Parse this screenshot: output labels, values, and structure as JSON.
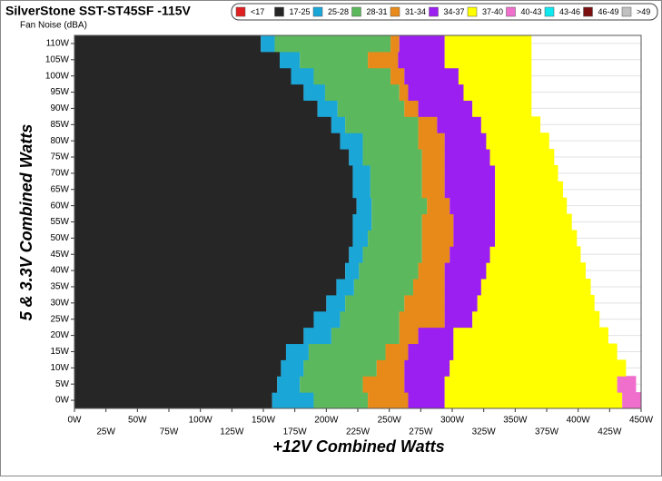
{
  "chart_data": {
    "type": "heatmap",
    "title": "SilverStone SST-ST45SF -115V",
    "subtitle": "Fan Noise (dBA)",
    "x_label": "+12V Combined Watts",
    "y_label": "5 & 3.3V Combined Watts",
    "xlim": [
      0,
      450
    ],
    "ylim": [
      -2.5,
      112.5
    ],
    "xticks": [
      {
        "value": 0,
        "label": "0W"
      },
      {
        "value": 25,
        "label": "25W"
      },
      {
        "value": 50,
        "label": "50W"
      },
      {
        "value": 75,
        "label": "75W"
      },
      {
        "value": 100,
        "label": "100W"
      },
      {
        "value": 125,
        "label": "125W"
      },
      {
        "value": 150,
        "label": "150W"
      },
      {
        "value": 175,
        "label": "175W"
      },
      {
        "value": 200,
        "label": "200W"
      },
      {
        "value": 225,
        "label": "225W"
      },
      {
        "value": 250,
        "label": "250W"
      },
      {
        "value": 275,
        "label": "275W"
      },
      {
        "value": 300,
        "label": "300W"
      },
      {
        "value": 325,
        "label": "325W"
      },
      {
        "value": 350,
        "label": "350W"
      },
      {
        "value": 375,
        "label": "375W"
      },
      {
        "value": 400,
        "label": "400W"
      },
      {
        "value": 425,
        "label": "425W"
      },
      {
        "value": 450,
        "label": "450W"
      }
    ],
    "yticks": [
      {
        "value": 0,
        "label": "0W"
      },
      {
        "value": 5,
        "label": "5W"
      },
      {
        "value": 10,
        "label": "10W"
      },
      {
        "value": 15,
        "label": "15W"
      },
      {
        "value": 20,
        "label": "20W"
      },
      {
        "value": 25,
        "label": "25W"
      },
      {
        "value": 30,
        "label": "30W"
      },
      {
        "value": 35,
        "label": "35W"
      },
      {
        "value": 40,
        "label": "40W"
      },
      {
        "value": 45,
        "label": "45W"
      },
      {
        "value": 50,
        "label": "50W"
      },
      {
        "value": 55,
        "label": "55W"
      },
      {
        "value": 60,
        "label": "60W"
      },
      {
        "value": 65,
        "label": "65W"
      },
      {
        "value": 70,
        "label": "70W"
      },
      {
        "value": 75,
        "label": "75W"
      },
      {
        "value": 80,
        "label": "80W"
      },
      {
        "value": 85,
        "label": "85W"
      },
      {
        "value": 90,
        "label": "90W"
      },
      {
        "value": 95,
        "label": "95W"
      },
      {
        "value": 100,
        "label": "100W"
      },
      {
        "value": 105,
        "label": "105W"
      },
      {
        "value": 110,
        "label": "110W"
      }
    ],
    "y": [
      0,
      5,
      10,
      15,
      20,
      25,
      30,
      35,
      40,
      45,
      50,
      55,
      60,
      65,
      70,
      75,
      80,
      85,
      90,
      95,
      100,
      105,
      110
    ],
    "series": [
      {
        "name": "<17",
        "color": "#e02020",
        "values": [
          null,
          null,
          null,
          null,
          null,
          null,
          null,
          null,
          null,
          null,
          null,
          null,
          null,
          null,
          null,
          null,
          null,
          null,
          null,
          null,
          null,
          null,
          null
        ]
      },
      {
        "name": "17-25",
        "color": "#262626",
        "values": [
          157,
          161,
          164,
          168,
          182,
          190,
          200,
          208,
          215,
          218,
          221,
          221,
          224,
          221,
          221,
          218,
          211,
          204,
          193,
          182,
          172,
          163,
          148
        ]
      },
      {
        "name": "25-28",
        "color": "#1ba6d8",
        "values": [
          190,
          179,
          182,
          186,
          204,
          211,
          215,
          222,
          226,
          229,
          233,
          236,
          236,
          235,
          235,
          229,
          229,
          215,
          209,
          199,
          190,
          179,
          159
        ]
      },
      {
        "name": "28-31",
        "color": "#5cb85c",
        "values": [
          233,
          229,
          240,
          247,
          258,
          258,
          262,
          269,
          273,
          276,
          276,
          276,
          280,
          276,
          276,
          276,
          273,
          273,
          262,
          258,
          251,
          233,
          251
        ]
      },
      {
        "name": "31-34",
        "color": "#e88a1a",
        "values": [
          265,
          262,
          262,
          265,
          273,
          294,
          294,
          294,
          294,
          298,
          301,
          301,
          298,
          294,
          294,
          294,
          294,
          288,
          273,
          265,
          262,
          257,
          258
        ]
      },
      {
        "name": "34-37",
        "color": "#9b1ff0",
        "values": [
          294,
          294,
          298,
          301,
          301,
          316,
          320,
          323,
          327,
          330,
          334,
          334,
          334,
          334,
          334,
          330,
          327,
          323,
          316,
          309,
          305,
          294,
          294
        ]
      },
      {
        "name": "37-40",
        "color": "#ffff00",
        "values": [
          435,
          431,
          438,
          431,
          424,
          417,
          413,
          410,
          406,
          402,
          399,
          395,
          391,
          388,
          384,
          381,
          377,
          370,
          363,
          363,
          363,
          363,
          363
        ]
      },
      {
        "name": "40-43",
        "color": "#f06ecc",
        "values": [
          450,
          446,
          null,
          null,
          null,
          null,
          null,
          null,
          null,
          null,
          null,
          null,
          null,
          null,
          null,
          null,
          null,
          null,
          null,
          null,
          null,
          null,
          null
        ]
      },
      {
        "name": "43-46",
        "color": "#10e8f0",
        "values": [
          null,
          null,
          null,
          null,
          null,
          null,
          null,
          null,
          null,
          null,
          null,
          null,
          null,
          null,
          null,
          null,
          null,
          null,
          null,
          null,
          null,
          null,
          null
        ]
      },
      {
        "name": "46-49",
        "color": "#7a1010",
        "values": [
          null,
          null,
          null,
          null,
          null,
          null,
          null,
          null,
          null,
          null,
          null,
          null,
          null,
          null,
          null,
          null,
          null,
          null,
          null,
          null,
          null,
          null,
          null
        ]
      },
      {
        "name": ">49",
        "color": "#c0c0c0",
        "values": [
          null,
          null,
          null,
          null,
          null,
          null,
          null,
          null,
          null,
          null,
          null,
          null,
          null,
          null,
          null,
          null,
          null,
          null,
          null,
          null,
          null,
          null,
          null
        ]
      }
    ]
  }
}
